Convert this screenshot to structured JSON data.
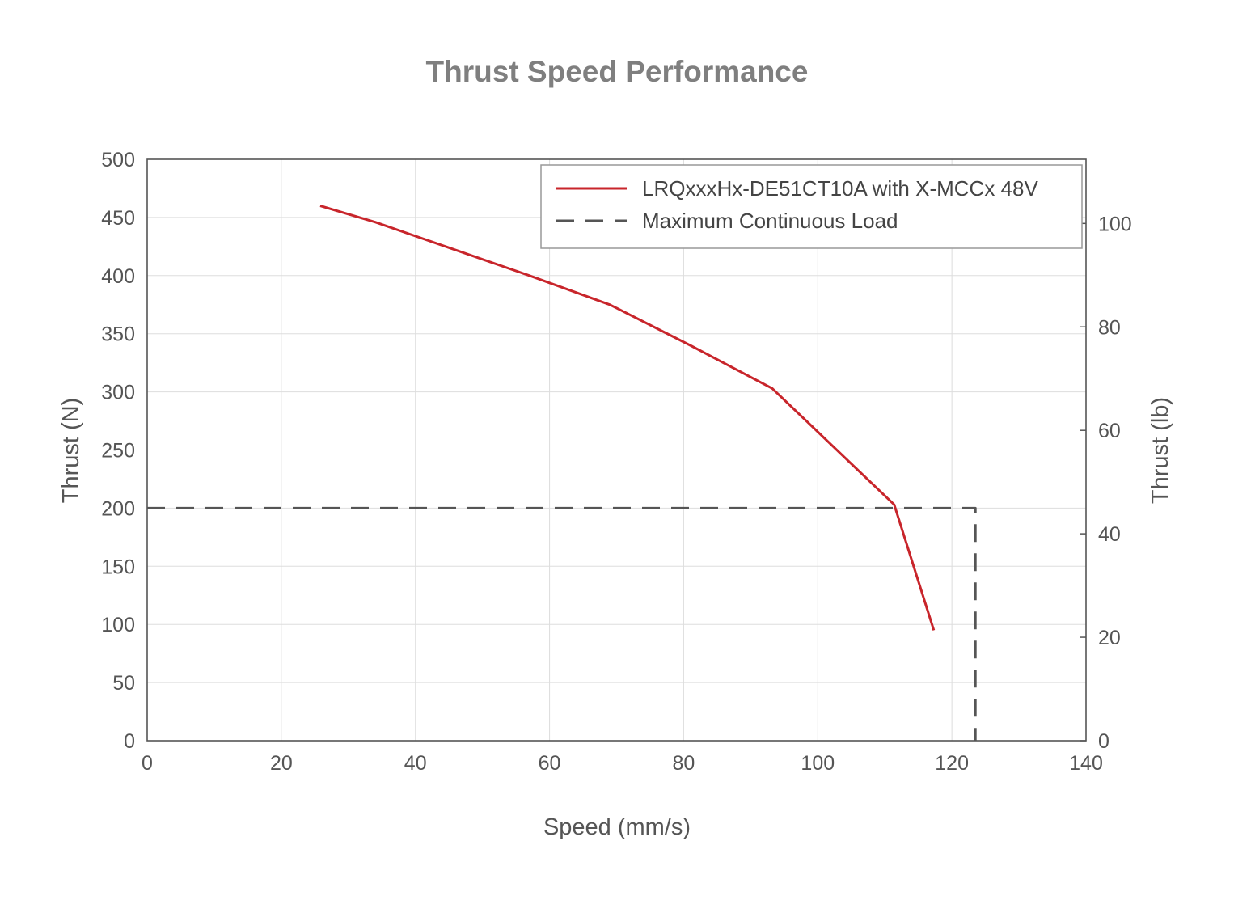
{
  "chart_data": {
    "type": "line",
    "title": "Thrust Speed Performance",
    "xlabel": "Speed (mm/s)",
    "ylabel": "Thrust (N)",
    "y2label": "Thrust (lb)",
    "xlim": [
      0,
      140
    ],
    "ylim": [
      0,
      500
    ],
    "y2lim": [
      0,
      112.4
    ],
    "xticks": [
      0,
      20,
      40,
      60,
      80,
      100,
      120,
      140
    ],
    "yticks": [
      0,
      50,
      100,
      150,
      200,
      250,
      300,
      350,
      400,
      450,
      500
    ],
    "y2ticks": [
      0,
      20,
      40,
      60,
      80,
      100
    ],
    "grid": true,
    "legend_position": "top-right",
    "series": [
      {
        "name": "LRQxxxHx-DE51CT10A with X-MCCx 48V",
        "color": "#c8252b",
        "style": "solid",
        "x": [
          25.8,
          34,
          45,
          57,
          69,
          81,
          93.2,
          111.4,
          117.3
        ],
        "y": [
          460,
          446,
          424,
          400,
          375,
          340,
          303,
          203,
          95
        ]
      },
      {
        "name": "Maximum Continuous Load",
        "color": "#555555",
        "style": "dashed",
        "x": [
          0,
          123.5,
          123.5
        ],
        "y": [
          200,
          200,
          0
        ]
      }
    ]
  }
}
